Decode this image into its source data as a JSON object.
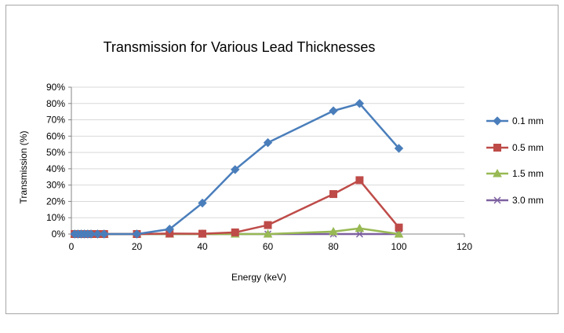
{
  "chart_data": {
    "type": "line",
    "title": "Transmission for Various Lead Thicknesses",
    "xlabel": "Energy (keV)",
    "ylabel": "Transmission (%)",
    "xlim": [
      0,
      120
    ],
    "ylim": [
      0,
      0.9
    ],
    "x_ticks": [
      "0",
      "20",
      "40",
      "60",
      "80",
      "100",
      "120"
    ],
    "y_ticks": [
      "0%",
      "10%",
      "20%",
      "30%",
      "40%",
      "50%",
      "60%",
      "70%",
      "80%",
      "90%"
    ],
    "grid": "horizontal major gridlines",
    "legend_position": "right",
    "series": [
      {
        "name": "0.1 mm",
        "color": "#4a7ebb",
        "marker": "diamond",
        "points": [
          [
            1,
            0
          ],
          [
            2,
            0
          ],
          [
            3,
            0
          ],
          [
            4,
            0
          ],
          [
            5,
            0
          ],
          [
            6,
            0
          ],
          [
            8,
            0
          ],
          [
            10,
            0
          ],
          [
            20,
            0
          ],
          [
            30,
            0.03
          ],
          [
            40,
            0.19
          ],
          [
            50,
            0.395
          ],
          [
            60,
            0.56
          ],
          [
            80,
            0.755
          ],
          [
            88,
            0.8
          ],
          [
            100,
            0.525
          ]
        ]
      },
      {
        "name": "0.5 mm",
        "color": "#be4b48",
        "marker": "square",
        "points": [
          [
            1,
            0
          ],
          [
            2,
            0
          ],
          [
            3,
            0
          ],
          [
            4,
            0
          ],
          [
            5,
            0
          ],
          [
            6,
            0
          ],
          [
            8,
            0
          ],
          [
            10,
            0
          ],
          [
            20,
            0
          ],
          [
            30,
            0.003
          ],
          [
            40,
            0.002
          ],
          [
            50,
            0.01
          ],
          [
            60,
            0.055
          ],
          [
            80,
            0.245
          ],
          [
            88,
            0.33
          ],
          [
            100,
            0.04
          ]
        ]
      },
      {
        "name": "1.5 mm",
        "color": "#98b954",
        "marker": "triangle",
        "points": [
          [
            1,
            0
          ],
          [
            2,
            0
          ],
          [
            3,
            0
          ],
          [
            4,
            0
          ],
          [
            5,
            0
          ],
          [
            6,
            0
          ],
          [
            8,
            0
          ],
          [
            10,
            0
          ],
          [
            20,
            0
          ],
          [
            30,
            0
          ],
          [
            40,
            0
          ],
          [
            50,
            0
          ],
          [
            60,
            0
          ],
          [
            80,
            0.015
          ],
          [
            88,
            0.035
          ],
          [
            100,
            0
          ]
        ]
      },
      {
        "name": "3.0 mm",
        "color": "#7d60a0",
        "marker": "x",
        "points": [
          [
            1,
            0
          ],
          [
            2,
            0
          ],
          [
            3,
            0
          ],
          [
            4,
            0
          ],
          [
            5,
            0
          ],
          [
            6,
            0
          ],
          [
            8,
            0
          ],
          [
            10,
            0
          ],
          [
            20,
            0
          ],
          [
            30,
            0
          ],
          [
            40,
            0
          ],
          [
            50,
            0
          ],
          [
            60,
            0
          ],
          [
            80,
            0
          ],
          [
            88,
            0
          ],
          [
            100,
            0
          ]
        ]
      }
    ]
  }
}
